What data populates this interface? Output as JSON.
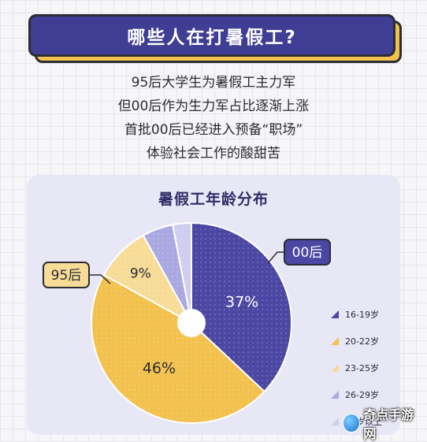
{
  "banner": {
    "title": "哪些人在打暑假工?"
  },
  "intro_lines": [
    "95后大学生为暑假工主力军",
    "但00后作为生力军占比逐渐上涨",
    "首批00后已经进入预备“职场”",
    "体验社会工作的酸甜苦"
  ],
  "chart_data": {
    "type": "pie",
    "title": "暑假工年龄分布",
    "slices": [
      {
        "label": "16-19岁",
        "value": 37,
        "color": "#4b47a3",
        "value_label": "37%"
      },
      {
        "label": "20-22岁",
        "value": 46,
        "color": "#f2c14e",
        "value_label": "46%"
      },
      {
        "label": "23-25岁",
        "value": 9,
        "color": "#f7dc98",
        "value_label": "9%"
      },
      {
        "label": "26-29岁",
        "value": 5,
        "color": "#aaa8e0",
        "value_label": ""
      },
      {
        "label": "30岁以上",
        "value": 3,
        "color": "#cfcdf0",
        "value_label": ""
      }
    ],
    "callouts": [
      {
        "text": "00后",
        "slice": 0,
        "color": "#4b47a3",
        "text_color": "#ffffff"
      },
      {
        "text": "95后",
        "slice": 2,
        "color": "#f7dc98",
        "text_color": "#2b2b33"
      }
    ],
    "legend_position": "right"
  },
  "watermark": {
    "text": "奇点手游网"
  }
}
